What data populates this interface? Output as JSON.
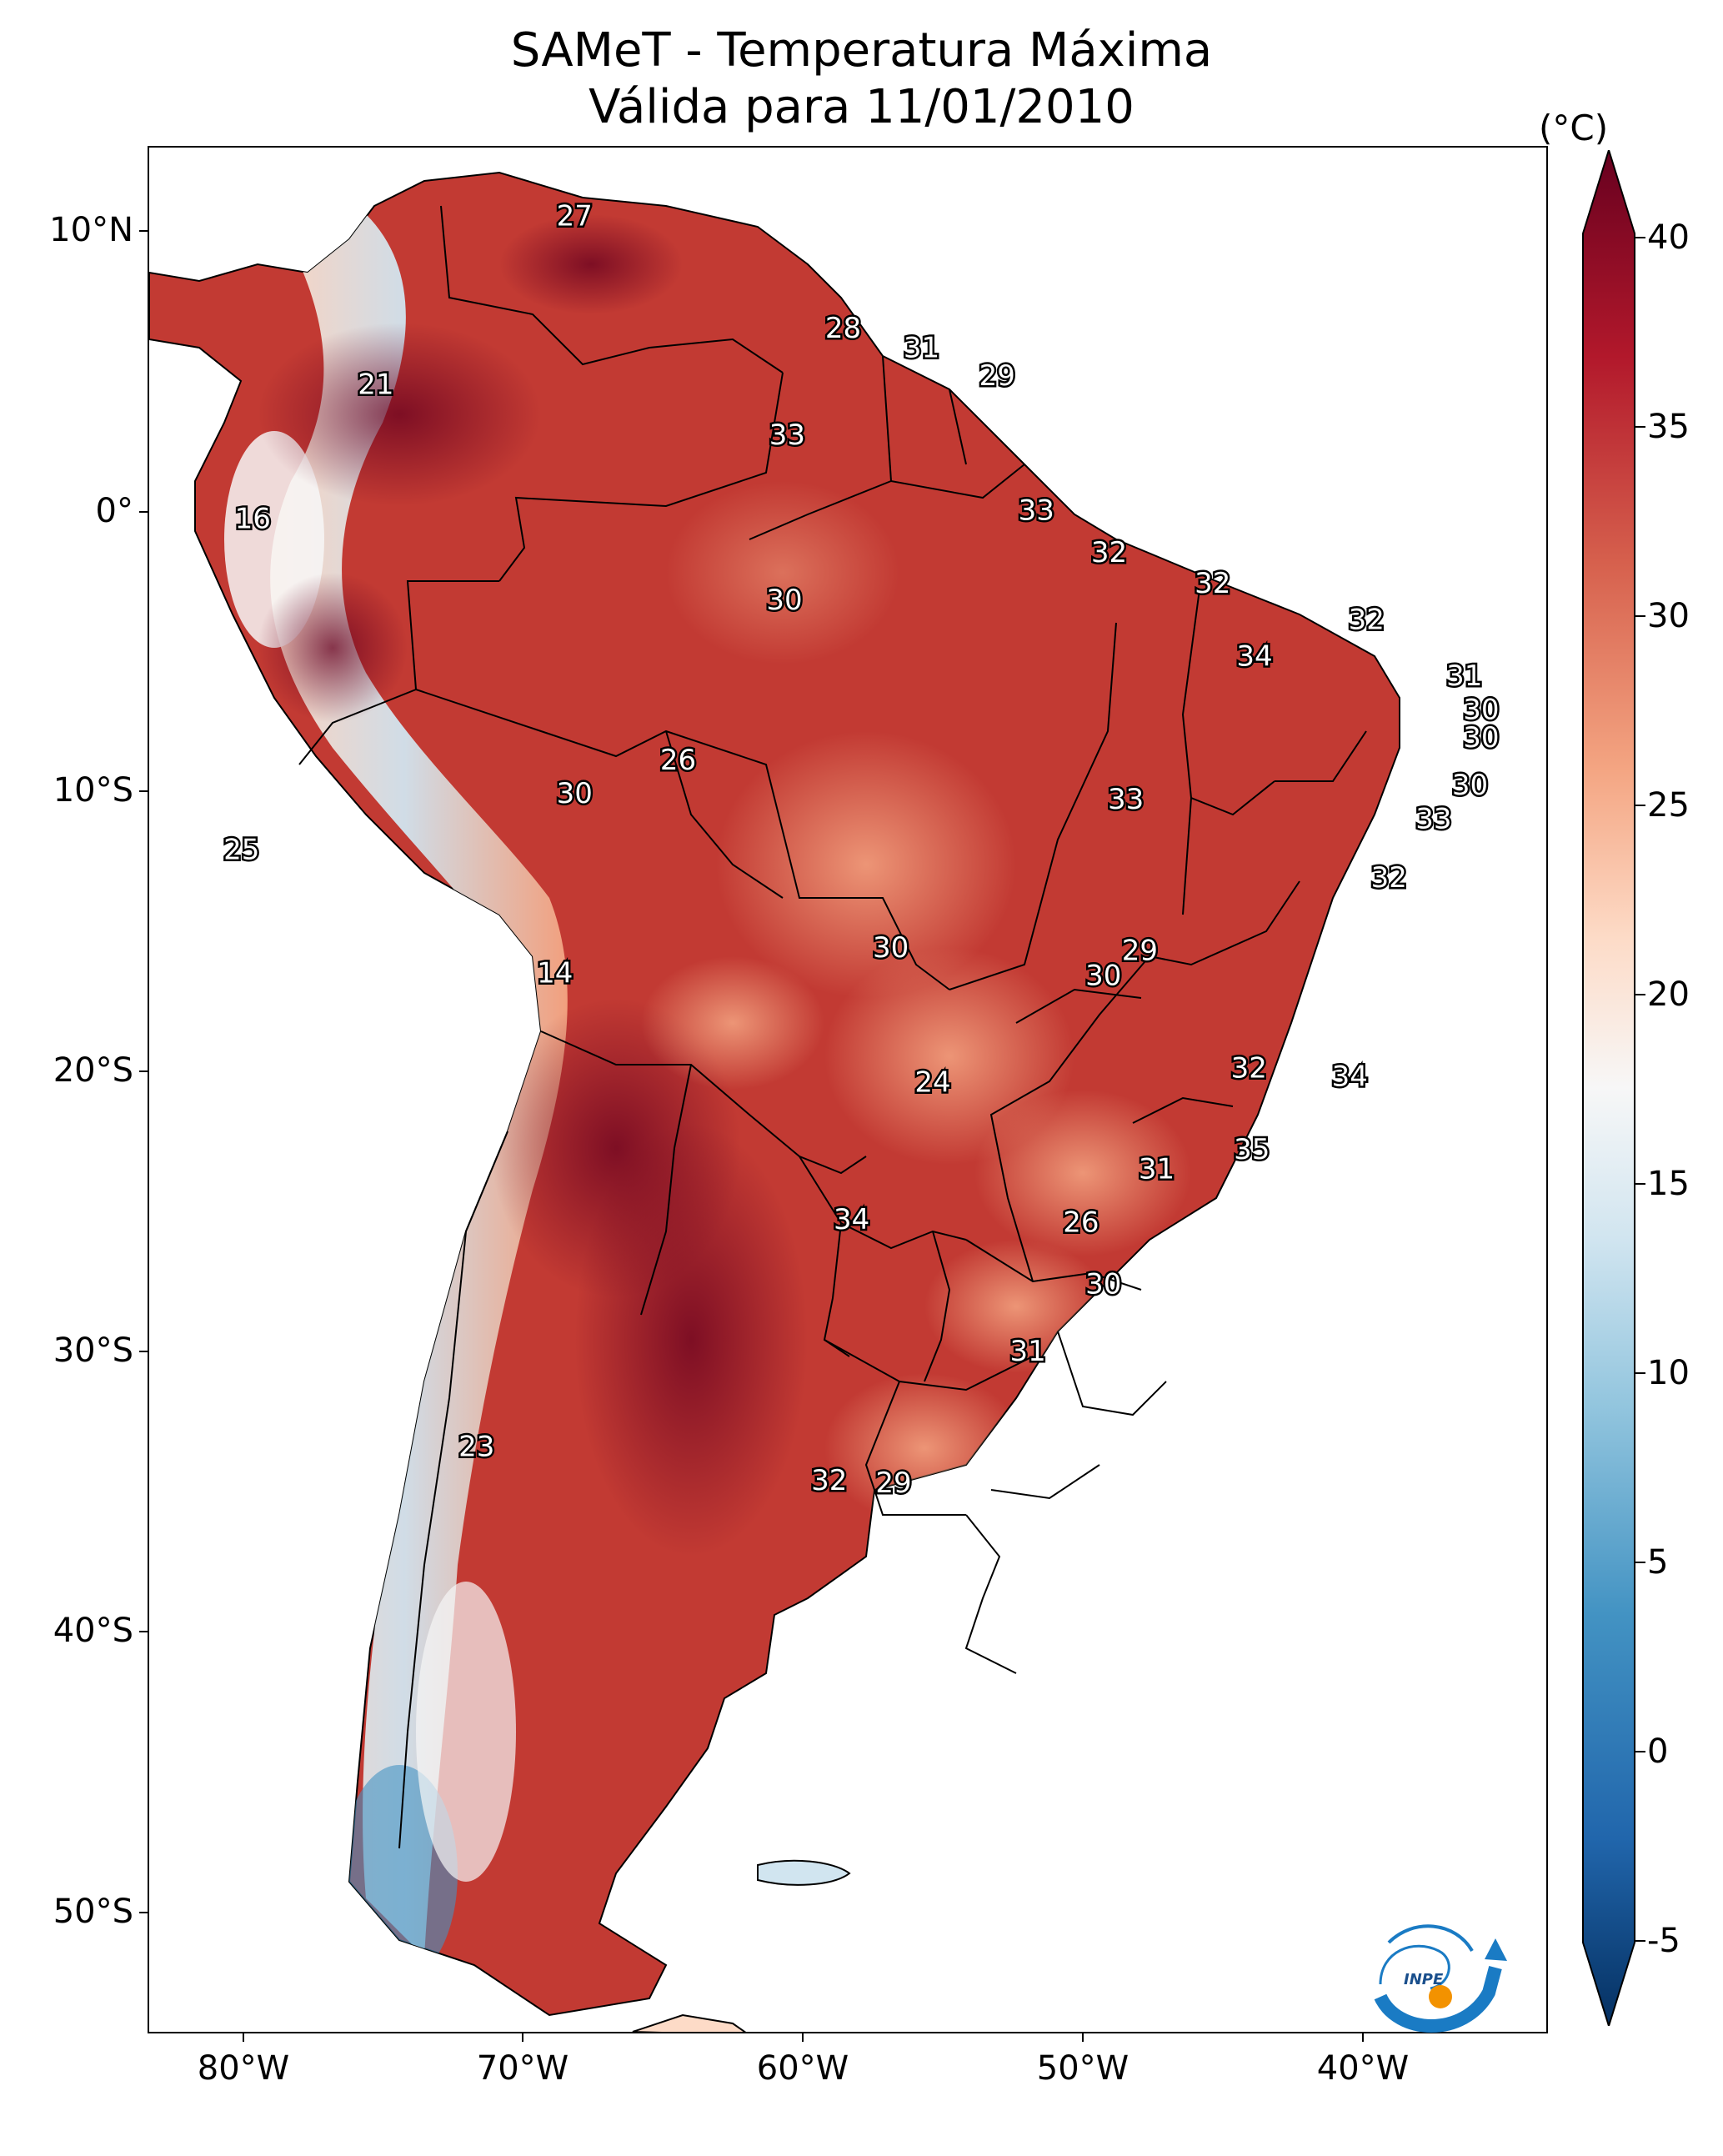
{
  "title": {
    "line1": "SAMeT - Temperatura Máxima",
    "line2": "Válida para 11/01/2010"
  },
  "colorbar": {
    "unit": "(°C)",
    "ticks": [
      "40",
      "35",
      "30",
      "25",
      "20",
      "15",
      "10",
      "5",
      "0",
      "-5"
    ],
    "range": [
      -5,
      40
    ],
    "colors": [
      "#053061",
      "#2166ac",
      "#4393c3",
      "#92c5de",
      "#d1e5f0",
      "#f7f7f7",
      "#fddbc7",
      "#f4a582",
      "#d6604d",
      "#b2182b",
      "#67001f"
    ]
  },
  "axes": {
    "lat_ticks": [
      "10°N",
      "0°",
      "10°S",
      "20°S",
      "30°S",
      "40°S",
      "50°S"
    ],
    "lon_ticks": [
      "80°W",
      "70°W",
      "60°W",
      "50°W",
      "40°W"
    ]
  },
  "map_values": [
    {
      "text": "27",
      "lon": -67.4,
      "lat": 10.5
    },
    {
      "text": "21",
      "lon": -74.5,
      "lat": 4.5
    },
    {
      "text": "28",
      "lon": -57.8,
      "lat": 6.5
    },
    {
      "text": "31",
      "lon": -55.0,
      "lat": 5.8
    },
    {
      "text": "29",
      "lon": -52.3,
      "lat": 4.8
    },
    {
      "text": "33",
      "lon": -59.8,
      "lat": 2.7
    },
    {
      "text": "16",
      "lon": -78.9,
      "lat": -0.3
    },
    {
      "text": "33",
      "lon": -50.9,
      "lat": 0.0
    },
    {
      "text": "32",
      "lon": -48.3,
      "lat": -1.5
    },
    {
      "text": "30",
      "lon": -59.9,
      "lat": -3.2
    },
    {
      "text": "32",
      "lon": -44.6,
      "lat": -2.6
    },
    {
      "text": "32",
      "lon": -39.1,
      "lat": -3.9
    },
    {
      "text": "34",
      "lon": -43.1,
      "lat": -5.2
    },
    {
      "text": "31",
      "lon": -35.6,
      "lat": -5.9
    },
    {
      "text": "30",
      "lon": -35.0,
      "lat": -7.1
    },
    {
      "text": "30",
      "lon": -35.0,
      "lat": -8.1
    },
    {
      "text": "26",
      "lon": -63.7,
      "lat": -8.9
    },
    {
      "text": "30",
      "lon": -67.4,
      "lat": -10.1
    },
    {
      "text": "30",
      "lon": -35.4,
      "lat": -9.8
    },
    {
      "text": "33",
      "lon": -47.7,
      "lat": -10.3
    },
    {
      "text": "33",
      "lon": -36.7,
      "lat": -11.0
    },
    {
      "text": "25",
      "lon": -79.3,
      "lat": -12.1
    },
    {
      "text": "32",
      "lon": -38.3,
      "lat": -13.1
    },
    {
      "text": "30",
      "lon": -56.1,
      "lat": -15.6
    },
    {
      "text": "29",
      "lon": -47.2,
      "lat": -15.7
    },
    {
      "text": "30",
      "lon": -48.5,
      "lat": -16.6
    },
    {
      "text": "14",
      "lon": -68.1,
      "lat": -16.5
    },
    {
      "text": "32",
      "lon": -43.3,
      "lat": -19.9
    },
    {
      "text": "34",
      "lon": -39.7,
      "lat": -20.2
    },
    {
      "text": "24",
      "lon": -54.6,
      "lat": -20.4
    },
    {
      "text": "35",
      "lon": -43.2,
      "lat": -22.8
    },
    {
      "text": "31",
      "lon": -46.6,
      "lat": -23.5
    },
    {
      "text": "34",
      "lon": -57.5,
      "lat": -25.3
    },
    {
      "text": "26",
      "lon": -49.3,
      "lat": -25.4
    },
    {
      "text": "30",
      "lon": -48.5,
      "lat": -27.6
    },
    {
      "text": "31",
      "lon": -51.2,
      "lat": -30.0
    },
    {
      "text": "23",
      "lon": -70.9,
      "lat": -33.4
    },
    {
      "text": "32",
      "lon": -58.3,
      "lat": -34.6
    },
    {
      "text": "29",
      "lon": -56.0,
      "lat": -34.7
    }
  ]
}
